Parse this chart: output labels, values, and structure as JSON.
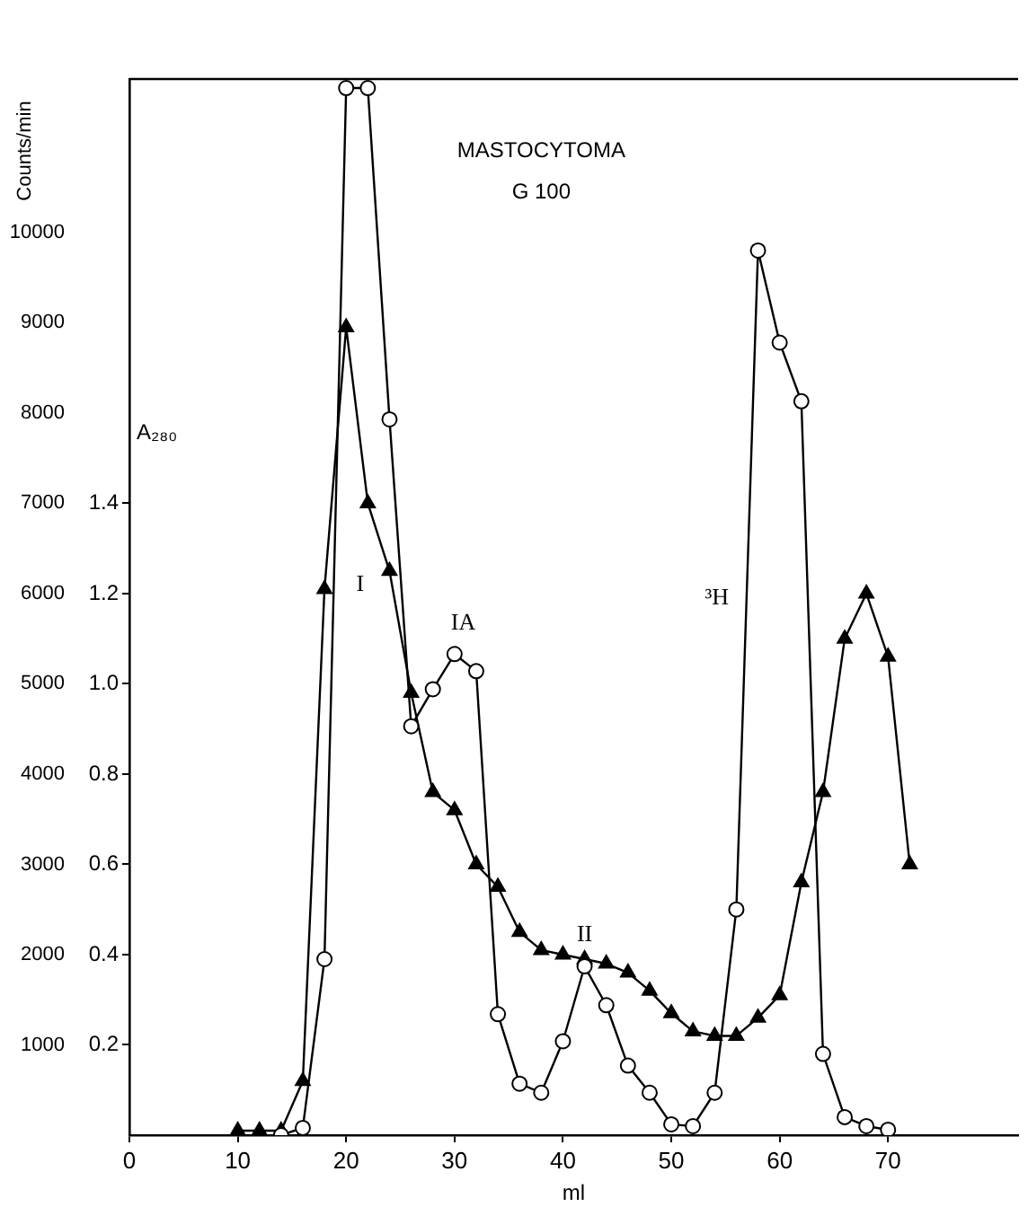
{
  "chart_data": {
    "type": "line",
    "title": "MASTOCYTOMA",
    "subtitle": "G 100",
    "xlabel": "ml",
    "ylabel": "Counts/min",
    "y2label": "A₂₈₀",
    "series": [
      {
        "x": [
          14,
          16,
          18,
          20,
          22,
          24,
          26,
          28,
          30,
          32,
          34,
          36,
          38,
          40,
          42,
          44,
          46,
          48,
          50,
          52,
          54,
          56,
          58,
          60,
          62,
          64,
          66,
          68,
          70
        ],
        "values": [
          0,
          80,
          1950,
          11600,
          11600,
          7930,
          4530,
          4940,
          5330,
          5140,
          1340,
          570,
          470,
          1040,
          1870,
          1440,
          770,
          470,
          120,
          100,
          470,
          2500,
          9800,
          8780,
          8130,
          900,
          200,
          100,
          60
        ],
        "color": "#000000",
        "marker": "circle"
      },
      {
        "x": [
          10,
          12,
          14,
          16,
          18,
          20,
          22,
          24,
          26,
          28,
          30,
          32,
          34,
          36,
          38,
          40,
          42,
          44,
          46,
          48,
          50,
          52,
          54,
          56,
          58,
          60,
          62,
          64,
          66,
          68,
          70,
          72
        ],
        "values": [
          0.01,
          0.01,
          0.01,
          0.12,
          1.21,
          1.79,
          1.4,
          1.25,
          0.98,
          0.76,
          0.72,
          0.6,
          0.55,
          0.45,
          0.41,
          0.4,
          0.39,
          0.38,
          0.36,
          0.32,
          0.27,
          0.23,
          0.22,
          0.22,
          0.26,
          0.31,
          0.56,
          0.76,
          1.1,
          1.2,
          1.06,
          0.6
        ],
        "color": "#000000",
        "marker": "triangle",
        "axis": "y2"
      }
    ],
    "xlim": [
      0,
      82
    ],
    "xticks": [
      0,
      10,
      20,
      30,
      40,
      50,
      60,
      70
    ],
    "ylim": [
      0,
      11700
    ],
    "yticks": [
      1000,
      2000,
      3000,
      4000,
      5000,
      6000,
      7000,
      8000,
      9000,
      10000
    ],
    "y2lim": [
      0,
      2.34
    ],
    "y2ticks": [
      0.2,
      0.4,
      0.6,
      0.8,
      {
        "value": 1.0,
        "label": "1.0"
      },
      1.2,
      1.4
    ],
    "annotations": [
      "I",
      "IA",
      "II",
      "³H"
    ],
    "grid": false,
    "legend": false
  }
}
